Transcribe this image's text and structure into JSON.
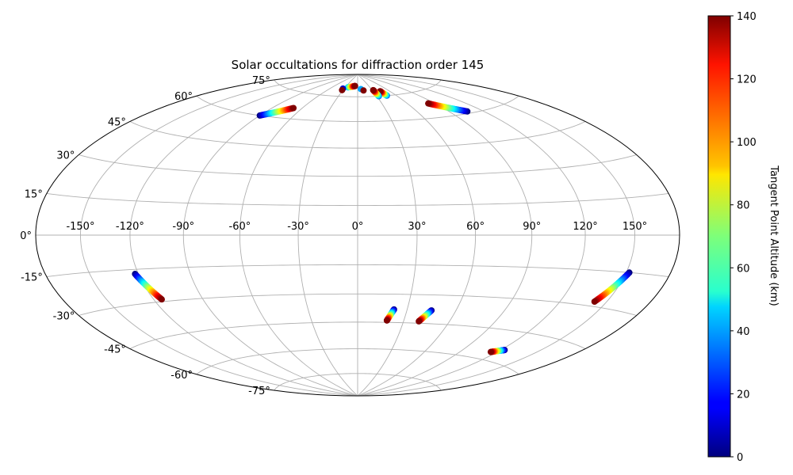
{
  "chart_data": {
    "type": "scatter",
    "projection": "hammer",
    "title": "Solar occultations for diffraction order 145",
    "grid": true,
    "x_ticks": [
      "-150°",
      "-120°",
      "-90°",
      "-60°",
      "-30°",
      "0°",
      "30°",
      "60°",
      "90°",
      "120°",
      "150°"
    ],
    "x_tick_values": [
      -150,
      -120,
      -90,
      -60,
      -30,
      0,
      30,
      60,
      90,
      120,
      150
    ],
    "y_ticks": [
      "-75°",
      "-60°",
      "-45°",
      "-30°",
      "-15°",
      "0°",
      "15°",
      "30°",
      "45°",
      "60°",
      "75°"
    ],
    "y_tick_values": [
      -75,
      -60,
      -45,
      -30,
      -15,
      0,
      15,
      30,
      45,
      60,
      75
    ],
    "colorbar": {
      "label": "Tangent Point Altitude (km)",
      "colormap": "jet",
      "range": [
        0,
        140
      ],
      "ticks": [
        "0",
        "20",
        "40",
        "60",
        "80",
        "100",
        "120",
        "140"
      ],
      "tick_values": [
        0,
        20,
        40,
        60,
        80,
        100,
        120,
        140
      ]
    },
    "tracks": [
      {
        "lon_start": -122,
        "lat_start": -17,
        "lon_end": -115,
        "lat_end": -29,
        "alt_start": 0,
        "alt_end": 140
      },
      {
        "lon_start": 152,
        "lat_start": -15,
        "lon_end": 142,
        "lat_end": -28,
        "alt_start": 0,
        "alt_end": 140
      },
      {
        "lon_start": 22,
        "lat_start": -38,
        "lon_end": 19,
        "lat_end": -44,
        "alt_start": 0,
        "alt_end": 140
      },
      {
        "lon_start": 45,
        "lat_start": -38,
        "lon_end": 40,
        "lat_end": -44,
        "alt_start": 0,
        "alt_end": 140
      },
      {
        "lon_start": 123,
        "lat_start": -54,
        "lon_end": 115,
        "lat_end": -56,
        "alt_start": 0,
        "alt_end": 140
      },
      {
        "lon_start": -90,
        "lat_start": 60,
        "lon_end": -69,
        "lat_end": 66,
        "alt_start": 0,
        "alt_end": 140
      },
      {
        "lon_start": 106,
        "lat_start": 61,
        "lon_end": 83,
        "lat_end": 68,
        "alt_start": 0,
        "alt_end": 140
      },
      {
        "lon_start": -24,
        "lat_start": 81,
        "lon_end": -7,
        "lat_end": 82,
        "alt_start": 40,
        "alt_end": 140
      },
      {
        "lon_start": 46,
        "lat_start": 75,
        "lon_end": 43,
        "lat_end": 78,
        "alt_start": 30,
        "alt_end": 140
      },
      {
        "lon_start": 33,
        "lat_start": 75,
        "lon_end": 32,
        "lat_end": 79,
        "alt_start": 30,
        "alt_end": 140
      }
    ],
    "points": [
      {
        "lon": -33,
        "lat": 80,
        "alt": 10
      },
      {
        "lon": -32,
        "lat": 79,
        "alt": 140
      },
      {
        "lon": 7,
        "lat": 80,
        "alt": 40
      },
      {
        "lon": 12,
        "lat": 79,
        "alt": 140
      }
    ]
  }
}
